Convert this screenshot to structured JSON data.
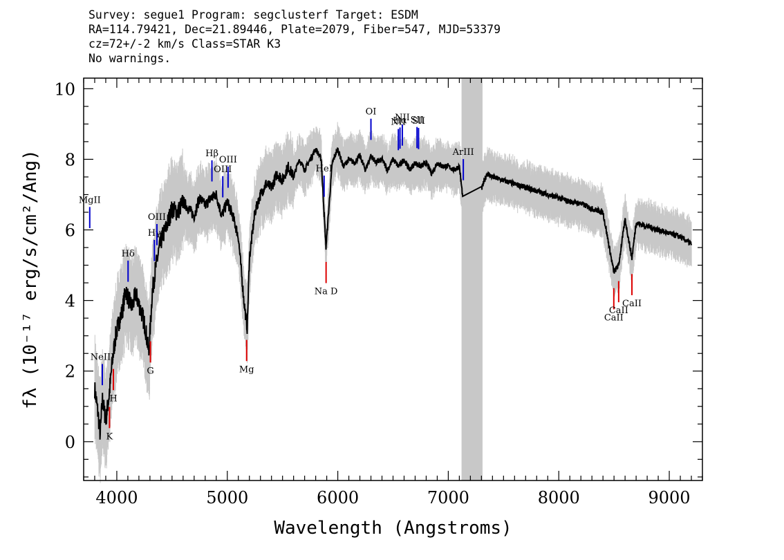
{
  "header": {
    "line1": "Survey: segue1 Program: segclusterf Target: ESDM",
    "line2": "RA=114.79421, Dec=21.89446, Plate=2079, Fiber=547, MJD=53379",
    "line3": "cz=72+/-2 km/s Class=STAR K3",
    "line4": "No warnings."
  },
  "chart_data": {
    "type": "line",
    "xlabel": "Wavelength (Angstroms)",
    "ylabel": "fλ (10⁻¹⁷ erg/s/cm²/Ang)",
    "xlim": [
      3700,
      9300
    ],
    "ylim": [
      -1.1,
      10.3
    ],
    "xticks": [
      4000,
      5000,
      6000,
      7000,
      8000,
      9000
    ],
    "yticks": [
      0,
      2,
      4,
      6,
      8,
      10
    ],
    "masked_region": [
      7120,
      7310
    ],
    "colors": {
      "flux": "#000000",
      "error": "#c8c8c8",
      "mask": "#c8c8c8",
      "emission": "#0000cc",
      "absorption": "#dd0000"
    },
    "series": [
      {
        "x": [
          3800,
          3830,
          3850,
          3870,
          3900,
          3930,
          3960,
          3990,
          4020,
          4050,
          4080,
          4110,
          4140,
          4170,
          4200,
          4230,
          4260,
          4290,
          4320,
          4350,
          4380,
          4410,
          4440,
          4470,
          4500,
          4550,
          4600,
          4650,
          4700,
          4750,
          4800,
          4850,
          4900,
          4950,
          5000,
          5050,
          5100,
          5150,
          5180,
          5200,
          5250,
          5300,
          5350,
          5400,
          5450,
          5500,
          5550,
          5600,
          5650,
          5700,
          5750,
          5800,
          5850,
          5893,
          5950,
          6000,
          6050,
          6100,
          6150,
          6200,
          6250,
          6300,
          6350,
          6400,
          6450,
          6500,
          6550,
          6600,
          6650,
          6700,
          6750,
          6800,
          6850,
          6900,
          6950,
          7000,
          7050,
          7100,
          7130,
          7300,
          7350,
          7400,
          7500,
          7600,
          7700,
          7800,
          7900,
          8000,
          8100,
          8200,
          8300,
          8400,
          8498,
          8542,
          8600,
          8662,
          8700,
          8800,
          8900,
          9000,
          9100,
          9200
        ],
        "y": [
          1.5,
          0.8,
          0.2,
          1.2,
          0.6,
          1.3,
          2.3,
          3.0,
          3.4,
          3.7,
          4.3,
          4.0,
          3.8,
          4.2,
          3.9,
          3.6,
          3.2,
          2.5,
          4.2,
          4.9,
          5.4,
          5.8,
          6.0,
          6.3,
          6.6,
          6.5,
          6.8,
          6.6,
          6.4,
          6.9,
          6.7,
          6.9,
          7.0,
          6.4,
          6.8,
          6.4,
          5.8,
          4.0,
          3.2,
          5.2,
          6.5,
          7.0,
          7.3,
          7.2,
          7.6,
          7.4,
          7.8,
          7.5,
          8.0,
          7.7,
          8.0,
          8.3,
          8.0,
          5.5,
          7.9,
          8.3,
          7.8,
          8.0,
          7.9,
          8.1,
          7.7,
          8.1,
          7.9,
          8.0,
          7.7,
          8.0,
          7.8,
          8.0,
          7.7,
          7.9,
          7.8,
          7.9,
          7.6,
          7.9,
          7.8,
          7.8,
          7.7,
          7.8,
          6.95,
          7.15,
          7.6,
          7.5,
          7.4,
          7.3,
          7.2,
          7.1,
          7.0,
          6.9,
          6.8,
          6.75,
          6.6,
          6.5,
          4.8,
          5.0,
          6.3,
          5.2,
          6.2,
          6.1,
          6.0,
          5.9,
          5.8,
          5.6
        ]
      }
    ],
    "emission_lines": [
      {
        "label": "MgII",
        "x": 3755
      },
      {
        "label": "NeIII",
        "x": 3869
      },
      {
        "label": "Hδ",
        "x": 4102
      },
      {
        "label": "Hγ",
        "x": 4340
      },
      {
        "label": "OIII",
        "x": 4363
      },
      {
        "label": "Hβ",
        "x": 4861
      },
      {
        "label": "OIII",
        "x": 4959
      },
      {
        "label": "OIII",
        "x": 5007
      },
      {
        "label": "HeI",
        "x": 5876
      },
      {
        "label": "OI",
        "x": 6300
      },
      {
        "label": "NII",
        "x": 6548
      },
      {
        "label": "Hα",
        "x": 6563
      },
      {
        "label": "NII",
        "x": 6584
      },
      {
        "label": "SII",
        "x": 6717
      },
      {
        "label": "SII",
        "x": 6731
      },
      {
        "label": "ArIII",
        "x": 7136
      }
    ],
    "absorption_lines": [
      {
        "label": "K",
        "x": 3934
      },
      {
        "label": "H",
        "x": 3969
      },
      {
        "label": "G",
        "x": 4304
      },
      {
        "label": "Mg",
        "x": 5175
      },
      {
        "label": "Na D",
        "x": 5894
      },
      {
        "label": "CaII",
        "x": 8498
      },
      {
        "label": "CaII",
        "x": 8542
      },
      {
        "label": "CaII",
        "x": 8662
      }
    ]
  }
}
